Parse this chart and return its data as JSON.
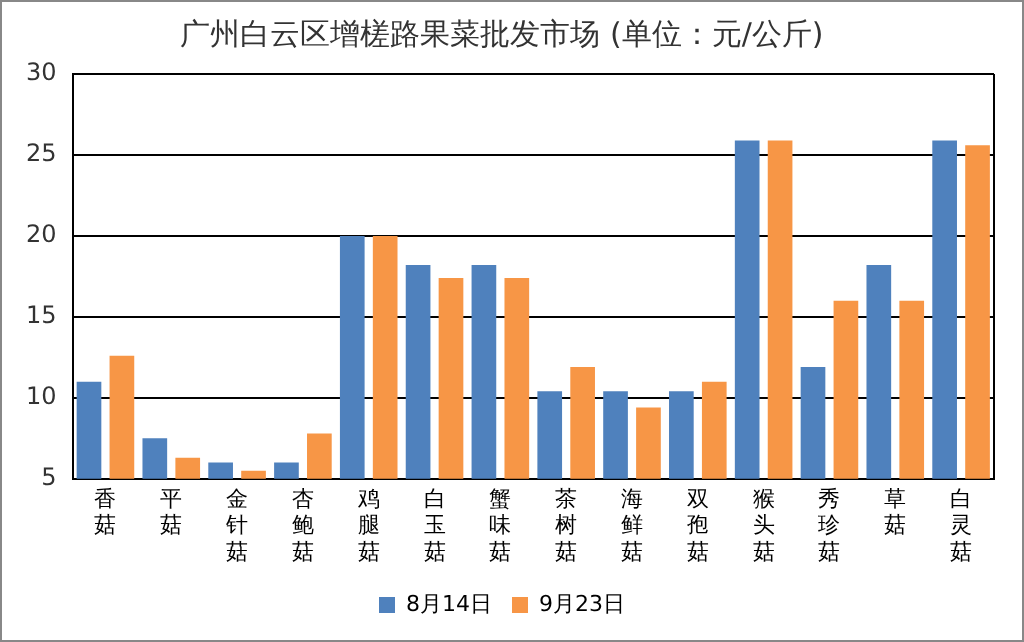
{
  "chart_data": {
    "type": "bar",
    "title": "广州白云区增槎路果菜批发市场 (单位：元/公斤)",
    "categories": [
      "香菇",
      "平菇",
      "金针菇",
      "杏鲍菇",
      "鸡腿菇",
      "白玉菇",
      "蟹味菇",
      "茶树菇",
      "海鲜菇",
      "双孢菇",
      "猴头菇",
      "秀珍菇",
      "草菇",
      "白灵菇"
    ],
    "series": [
      {
        "name": "8月14日",
        "color": "#4f81bd",
        "values": [
          11,
          7.5,
          6,
          6,
          20,
          18.2,
          18.2,
          10.4,
          10.4,
          10.4,
          25.9,
          11.9,
          18.2,
          25.9
        ]
      },
      {
        "name": "9月23日",
        "color": "#f79646",
        "values": [
          12.6,
          6.3,
          5.5,
          7.8,
          20,
          17.4,
          17.4,
          11.9,
          9.4,
          11,
          25.9,
          16,
          16,
          25.6
        ]
      }
    ],
    "ylim": [
      5,
      30
    ],
    "yticks": [
      5,
      10,
      15,
      20,
      25,
      30
    ],
    "grid": "y",
    "legend": "bottom"
  }
}
